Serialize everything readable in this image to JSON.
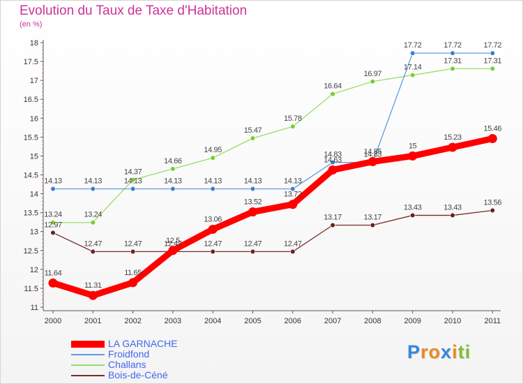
{
  "chart_data": {
    "type": "line",
    "title": "Evolution du Taux de Taxe d'Habitation",
    "subtitle": "(en %)",
    "categories": [
      "2000",
      "2001",
      "2002",
      "2003",
      "2004",
      "2005",
      "2006",
      "2007",
      "2008",
      "2009",
      "2010",
      "2011"
    ],
    "ylim": [
      11,
      18
    ],
    "yticks": [
      "11",
      "11.5",
      "12",
      "12.5",
      "13",
      "13.5",
      "14",
      "14.5",
      "15",
      "15.5",
      "16",
      "16.5",
      "17",
      "17.5",
      "18"
    ],
    "grid": false,
    "legend_position": "bottom-left",
    "series": [
      {
        "name": "LA GARNACHE",
        "color": "#ff0000",
        "marker_color": "#ff0000",
        "values": [
          11.64,
          11.31,
          11.65,
          12.5,
          13.06,
          13.52,
          13.72,
          14.63,
          14.85,
          15,
          15.23,
          15.46
        ],
        "labels": [
          "11.64",
          "11.31",
          "11.65",
          "12.5",
          "13.06",
          "13.52",
          "13.72",
          "14.63",
          "14.85",
          "15",
          "15.23",
          "15.46"
        ]
      },
      {
        "name": "Froidfond",
        "color": "#5f9cdc",
        "marker_color": "#3a7fcc",
        "values": [
          14.13,
          14.13,
          14.13,
          14.13,
          14.13,
          14.13,
          14.13,
          14.83,
          14.83,
          17.72,
          17.72,
          17.72
        ],
        "labels": [
          "14.13",
          "14.13",
          "14.13",
          "14.13",
          "14.13",
          "14.13",
          "14.13",
          "14.83",
          "14.83",
          "17.72",
          "17.72",
          "17.72"
        ]
      },
      {
        "name": "Challans",
        "color": "#99dd66",
        "marker_color": "#77cc33",
        "values": [
          13.24,
          13.24,
          14.37,
          14.66,
          14.95,
          15.47,
          15.78,
          16.64,
          16.97,
          17.14,
          17.31,
          17.31
        ],
        "labels": [
          "13.24",
          "13.24",
          "14.37",
          "14.66",
          "14.95",
          "15.47",
          "15.78",
          "16.64",
          "16.97",
          "17.14",
          "17.31",
          "17.31"
        ]
      },
      {
        "name": "Bois-de-Céné",
        "color": "#7a2a2a",
        "marker_color": "#6b1f1f",
        "values": [
          12.97,
          12.47,
          12.47,
          12.47,
          12.47,
          12.47,
          12.47,
          13.17,
          13.17,
          13.43,
          13.43,
          13.56
        ],
        "labels": [
          "12.97",
          "12.47",
          "12.47",
          "12.47",
          "12.47",
          "12.47",
          "12.47",
          "13.17",
          "13.17",
          "13.43",
          "13.43",
          "13.56"
        ]
      }
    ]
  },
  "logo": {
    "text": "Proxiti",
    "letters": [
      {
        "ch": "P",
        "color": "#3388dd"
      },
      {
        "ch": "r",
        "color": "#ee8822"
      },
      {
        "ch": "o",
        "color": "#ee8822"
      },
      {
        "ch": "x",
        "color": "#3388dd"
      },
      {
        "ch": "i",
        "color": "#ee8822"
      },
      {
        "ch": "t",
        "color": "#88bb33"
      },
      {
        "ch": "i",
        "color": "#88bb33"
      }
    ]
  }
}
